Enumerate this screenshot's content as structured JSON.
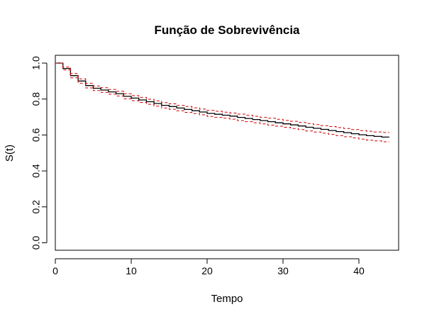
{
  "chart_data": {
    "type": "line",
    "title": "Função de Sobrevivência",
    "xlabel": "Tempo",
    "ylabel": "S(t)",
    "xlim": [
      0,
      45
    ],
    "ylim": [
      0,
      1
    ],
    "x_ticks": [
      "0",
      "10",
      "20",
      "30",
      "40"
    ],
    "y_ticks": [
      "0.0",
      "0.2",
      "0.4",
      "0.6",
      "0.8",
      "1.0"
    ],
    "line_colors": {
      "estimate": "#000000",
      "ci": "#cc0000"
    },
    "series": [
      {
        "name": "S(t)",
        "style": "step-solid",
        "x": [
          0,
          1,
          2,
          3,
          4,
          5,
          6,
          7,
          8,
          9,
          10,
          11,
          12,
          13,
          14,
          15,
          16,
          17,
          18,
          19,
          20,
          21,
          22,
          23,
          24,
          25,
          26,
          27,
          28,
          29,
          30,
          31,
          32,
          33,
          34,
          35,
          36,
          37,
          38,
          39,
          40,
          41,
          42,
          43,
          44
        ],
        "values": [
          1.0,
          0.97,
          0.93,
          0.9,
          0.875,
          0.86,
          0.85,
          0.84,
          0.83,
          0.815,
          0.805,
          0.795,
          0.785,
          0.775,
          0.765,
          0.758,
          0.75,
          0.742,
          0.735,
          0.728,
          0.72,
          0.715,
          0.71,
          0.705,
          0.698,
          0.692,
          0.686,
          0.68,
          0.674,
          0.668,
          0.662,
          0.656,
          0.65,
          0.643,
          0.637,
          0.631,
          0.625,
          0.619,
          0.613,
          0.607,
          0.601,
          0.596,
          0.592,
          0.588,
          0.588
        ]
      },
      {
        "name": "upper CI",
        "style": "step-dashed",
        "x": [
          0,
          1,
          2,
          3,
          4,
          5,
          6,
          7,
          8,
          9,
          10,
          11,
          12,
          13,
          14,
          15,
          16,
          17,
          18,
          19,
          20,
          21,
          22,
          23,
          24,
          25,
          26,
          27,
          28,
          29,
          30,
          31,
          32,
          33,
          34,
          35,
          36,
          37,
          38,
          39,
          40,
          41,
          42,
          43,
          44
        ],
        "values": [
          1.0,
          0.978,
          0.942,
          0.912,
          0.888,
          0.873,
          0.863,
          0.853,
          0.843,
          0.829,
          0.819,
          0.809,
          0.799,
          0.79,
          0.78,
          0.773,
          0.765,
          0.758,
          0.751,
          0.744,
          0.737,
          0.732,
          0.727,
          0.722,
          0.716,
          0.71,
          0.704,
          0.698,
          0.693,
          0.687,
          0.681,
          0.676,
          0.67,
          0.664,
          0.658,
          0.652,
          0.647,
          0.641,
          0.636,
          0.63,
          0.625,
          0.621,
          0.617,
          0.614,
          0.614
        ]
      },
      {
        "name": "lower CI",
        "style": "step-dashed",
        "x": [
          0,
          1,
          2,
          3,
          4,
          5,
          6,
          7,
          8,
          9,
          10,
          11,
          12,
          13,
          14,
          15,
          16,
          17,
          18,
          19,
          20,
          21,
          22,
          23,
          24,
          25,
          26,
          27,
          28,
          29,
          30,
          31,
          32,
          33,
          34,
          35,
          36,
          37,
          38,
          39,
          40,
          41,
          42,
          43,
          44
        ],
        "values": [
          1.0,
          0.962,
          0.918,
          0.888,
          0.862,
          0.847,
          0.837,
          0.827,
          0.817,
          0.801,
          0.791,
          0.781,
          0.771,
          0.76,
          0.75,
          0.743,
          0.735,
          0.726,
          0.719,
          0.712,
          0.703,
          0.698,
          0.693,
          0.688,
          0.68,
          0.674,
          0.668,
          0.662,
          0.655,
          0.649,
          0.643,
          0.636,
          0.63,
          0.622,
          0.616,
          0.61,
          0.603,
          0.597,
          0.59,
          0.584,
          0.577,
          0.571,
          0.567,
          0.562,
          0.562
        ]
      }
    ]
  }
}
